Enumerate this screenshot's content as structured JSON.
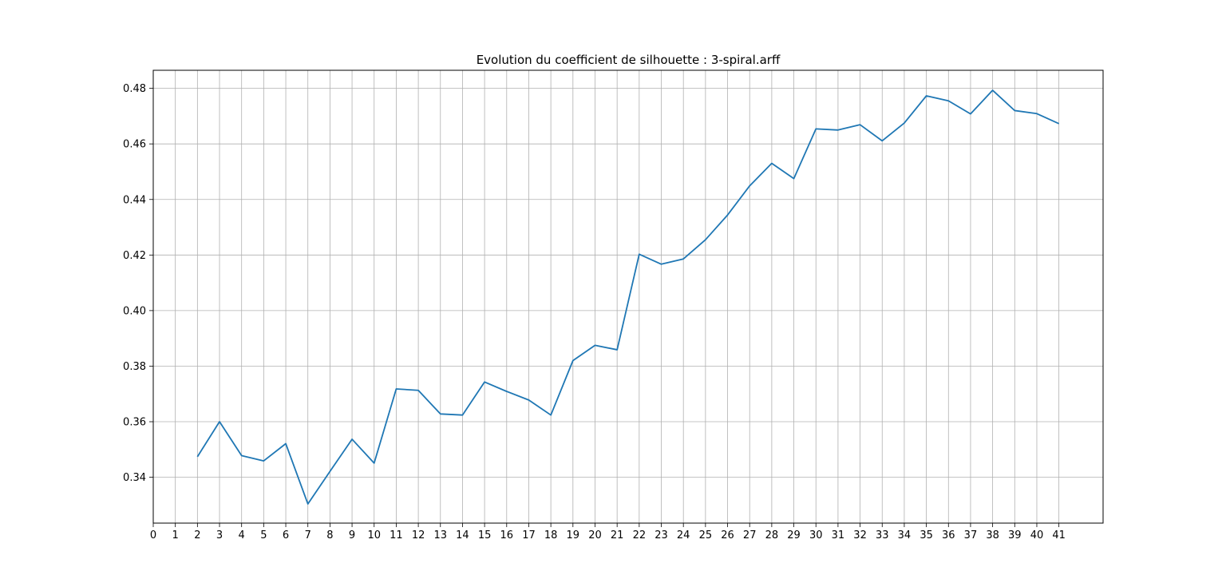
{
  "chart_data": {
    "type": "line",
    "title": "Evolution du coefficient de silhouette : 3-spiral.arff",
    "xlabel": "",
    "ylabel": "",
    "grid": true,
    "line_color": "#1f77b4",
    "grid_color": "#b0b0b0",
    "xlim": [
      0,
      43
    ],
    "ylim": [
      0.3235,
      0.4865
    ],
    "xticks": [
      0,
      1,
      2,
      3,
      4,
      5,
      6,
      7,
      8,
      9,
      10,
      11,
      12,
      13,
      14,
      15,
      16,
      17,
      18,
      19,
      20,
      21,
      22,
      23,
      24,
      25,
      26,
      27,
      28,
      29,
      30,
      31,
      32,
      33,
      34,
      35,
      36,
      37,
      38,
      39,
      40,
      41
    ],
    "yticks": [
      0.34,
      0.36,
      0.38,
      0.4,
      0.42,
      0.44,
      0.46,
      0.48
    ],
    "ytick_labels": [
      "0.34",
      "0.36",
      "0.38",
      "0.40",
      "0.42",
      "0.44",
      "0.46",
      "0.48"
    ],
    "x": [
      2,
      3,
      4,
      5,
      6,
      7,
      8,
      9,
      10,
      11,
      12,
      13,
      14,
      15,
      16,
      17,
      18,
      19,
      20,
      21,
      22,
      23,
      24,
      25,
      26,
      27,
      28,
      29,
      30,
      31,
      32,
      33,
      34,
      35,
      36,
      37,
      38,
      39,
      40,
      41
    ],
    "series": [
      {
        "values": [
          0.3474,
          0.36,
          0.3478,
          0.3459,
          0.3521,
          0.3304,
          0.3421,
          0.3537,
          0.3451,
          0.3718,
          0.3713,
          0.3628,
          0.3624,
          0.3743,
          0.3709,
          0.3678,
          0.3624,
          0.382,
          0.3875,
          0.3859,
          0.4203,
          0.4167,
          0.4186,
          0.4255,
          0.4344,
          0.4449,
          0.453,
          0.4475,
          0.4654,
          0.465,
          0.4669,
          0.4611,
          0.4675,
          0.4773,
          0.4755,
          0.4708,
          0.4793,
          0.472,
          0.4709,
          0.4673
        ]
      }
    ]
  }
}
